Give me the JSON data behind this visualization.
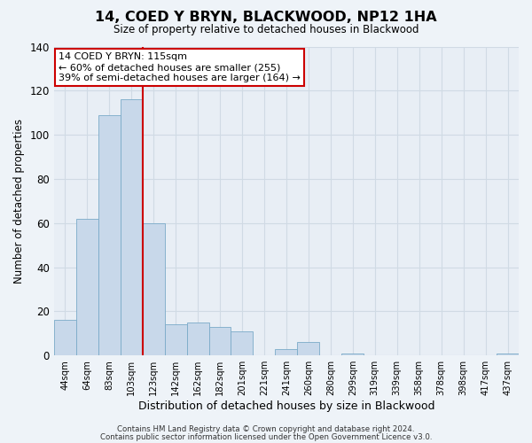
{
  "title": "14, COED Y BRYN, BLACKWOOD, NP12 1HA",
  "subtitle": "Size of property relative to detached houses in Blackwood",
  "xlabel": "Distribution of detached houses by size in Blackwood",
  "ylabel": "Number of detached properties",
  "bar_labels": [
    "44sqm",
    "64sqm",
    "83sqm",
    "103sqm",
    "123sqm",
    "142sqm",
    "162sqm",
    "182sqm",
    "201sqm",
    "221sqm",
    "241sqm",
    "260sqm",
    "280sqm",
    "299sqm",
    "319sqm",
    "339sqm",
    "358sqm",
    "378sqm",
    "398sqm",
    "417sqm",
    "437sqm"
  ],
  "bar_values": [
    16,
    62,
    109,
    116,
    60,
    14,
    15,
    13,
    11,
    0,
    3,
    6,
    0,
    1,
    0,
    0,
    0,
    0,
    0,
    0,
    1
  ],
  "bar_color": "#c8d8ea",
  "bar_edge_color": "#7aaac8",
  "vline_color": "#cc0000",
  "ylim": [
    0,
    140
  ],
  "yticks": [
    0,
    20,
    40,
    60,
    80,
    100,
    120,
    140
  ],
  "annotation_line1": "14 COED Y BRYN: 115sqm",
  "annotation_line2": "← 60% of detached houses are smaller (255)",
  "annotation_line3": "39% of semi-detached houses are larger (164) →",
  "footnote1": "Contains HM Land Registry data © Crown copyright and database right 2024.",
  "footnote2": "Contains public sector information licensed under the Open Government Licence v3.0.",
  "bg_color": "#eef3f8",
  "plot_bg_color": "#e8eef5",
  "grid_color": "#d0dae4"
}
